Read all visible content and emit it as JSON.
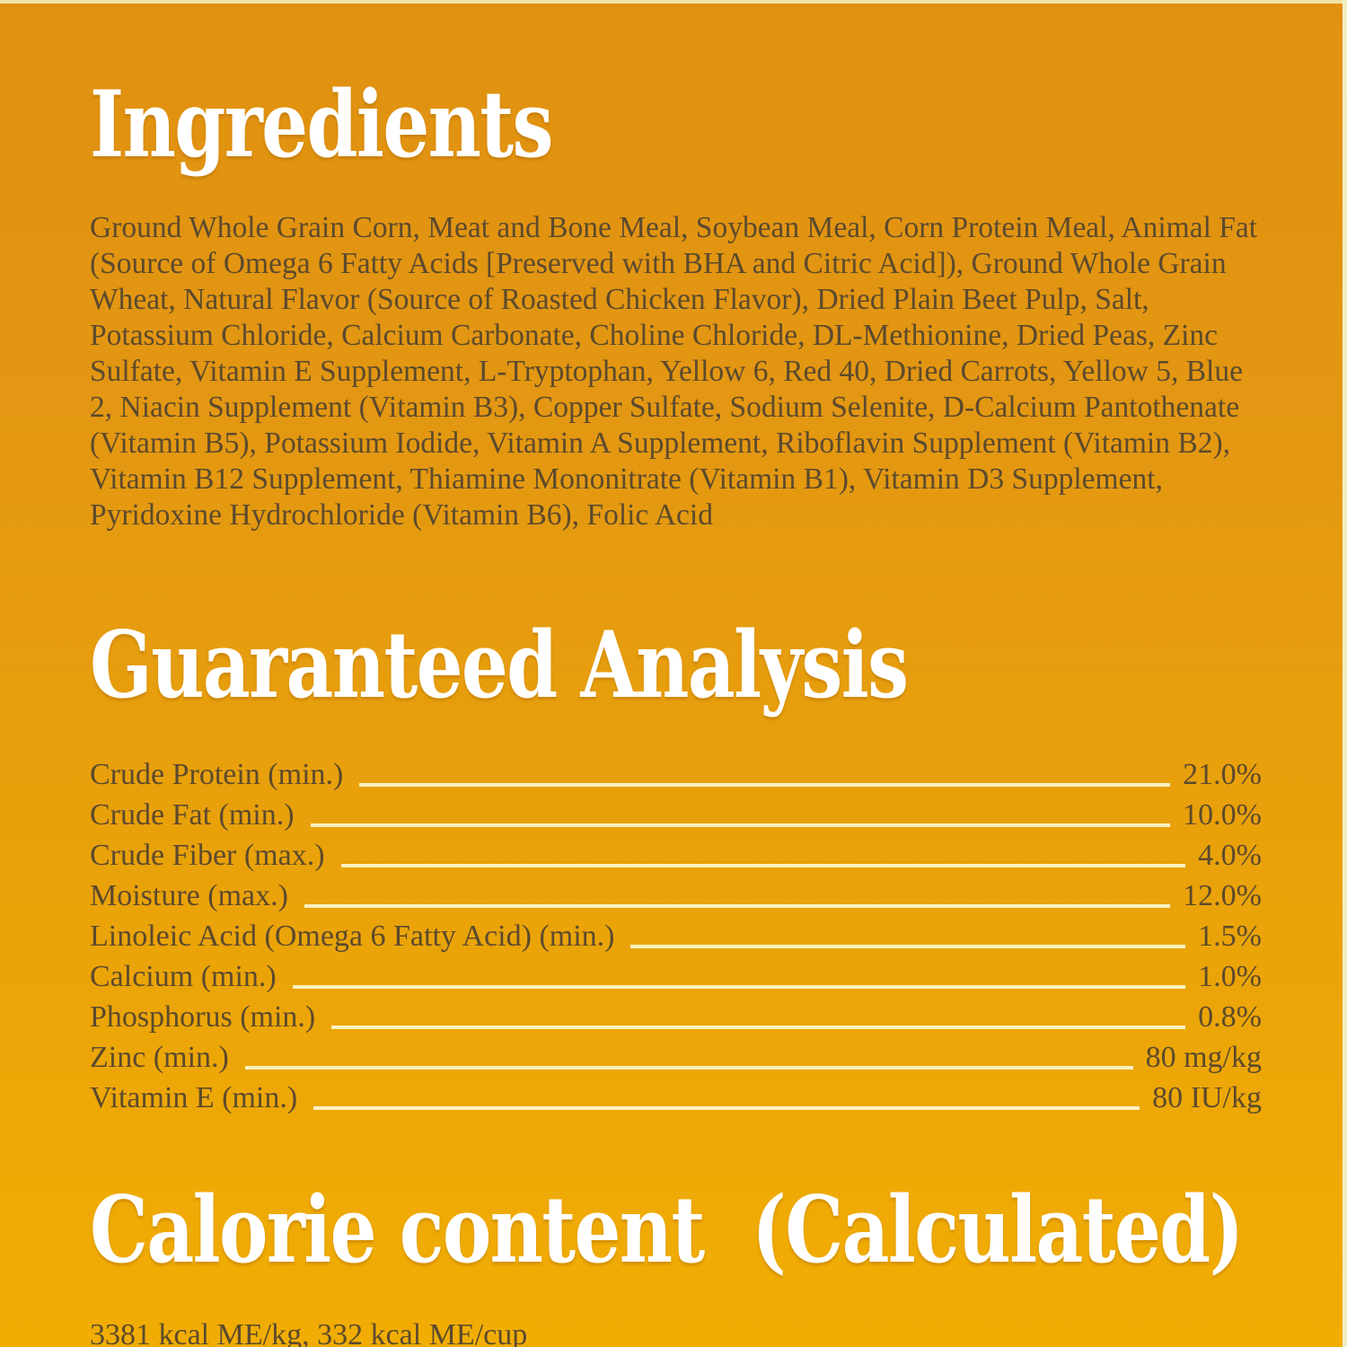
{
  "page": {
    "type": "pet-food-nutrition-label",
    "colors": {
      "background_top": "#e09110",
      "background_bottom": "#f1ad03",
      "edge_strip_top": "#efe3a4",
      "edge_strip_right": "#f4edc4",
      "heading_text": "#ffffff",
      "body_text": "#5c4a2d",
      "leader_line": "#faf2c0"
    }
  },
  "sections": {
    "ingredients": {
      "title": "Ingredients",
      "body": "Ground Whole Grain Corn, Meat and Bone Meal, Soybean Meal, Corn Protein Meal, Animal Fat (Source of Omega 6 Fatty Acids [Preserved with BHA and Citric Acid]), Ground Whole Grain Wheat, Natural Flavor (Source of Roasted Chicken Flavor), Dried Plain Beet Pulp, Salt, Potassium Chloride, Calcium Carbonate, Choline Chloride, DL-Methionine, Dried Peas, Zinc Sulfate, Vitamin E Supplement, L-Tryptophan, Yellow 6, Red 40, Dried Carrots, Yellow 5, Blue 2, Niacin Supplement (Vitamin B3), Copper Sulfate, Sodium Selenite, D-Calcium Pantothenate (Vitamin B5), Potassium Iodide, Vitamin A Supplement, Riboflavin Supplement (Vitamin B2), Vitamin B12 Supplement, Thiamine Mononitrate (Vitamin B1), Vitamin D3 Supplement, Pyridoxine Hydrochloride (Vitamin B6), Folic Acid"
    },
    "guaranteed_analysis": {
      "title": "Guaranteed Analysis",
      "rows": [
        {
          "label": "Crude Protein (min.)",
          "value": "21.0%"
        },
        {
          "label": "Crude Fat (min.)",
          "value": "10.0%"
        },
        {
          "label": "Crude Fiber (max.)",
          "value": "4.0%"
        },
        {
          "label": "Moisture (max.)",
          "value": "12.0%"
        },
        {
          "label": "Linoleic Acid (Omega 6 Fatty Acid) (min.)",
          "value": "1.5%"
        },
        {
          "label": "Calcium (min.)",
          "value": "1.0%"
        },
        {
          "label": "Phosphorus (min.)",
          "value": "0.8%"
        },
        {
          "label": "Zinc (min.)",
          "value": "80 mg/kg"
        },
        {
          "label": "Vitamin E (min.)",
          "value": "80 IU/kg"
        }
      ]
    },
    "calorie_content": {
      "title": "Calorie content  (Calculated)",
      "value": "3381 kcal ME/kg, 332 kcal ME/cup"
    }
  }
}
